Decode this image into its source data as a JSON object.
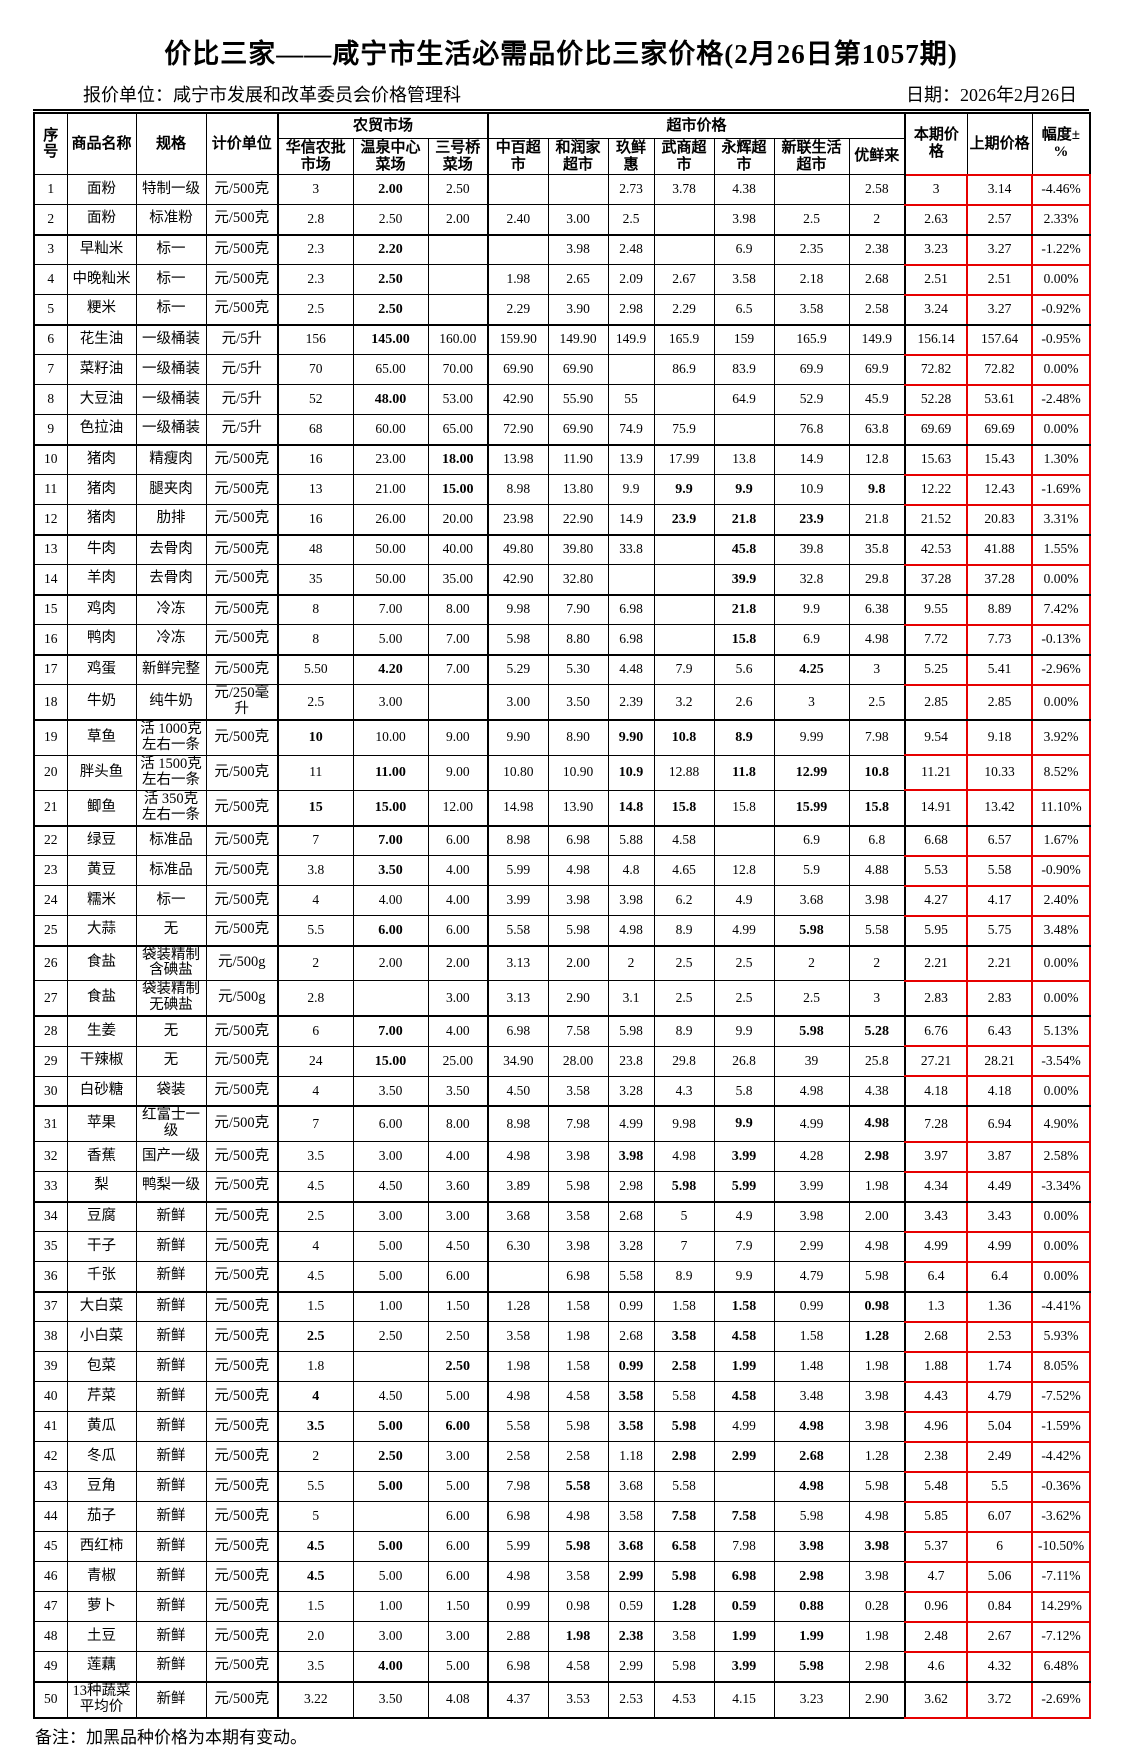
{
  "page": {
    "title": "价比三家——咸宁市生活必需品价比三家价格(2月26日第1057期)",
    "quote_unit_label": "报价单位：",
    "quote_unit": "咸宁市发展和改革委员会价格管理科",
    "date_label": "日期：",
    "date": "2026年2月26日",
    "note": "备注：加黑品种价格为本期有变动。"
  },
  "colors": {
    "grid": "#000000",
    "highlight_border": "#e60000"
  },
  "table": {
    "fixed_headers": {
      "no": "序号",
      "name": "商品名称",
      "spec": "规格",
      "unit": "计价单位"
    },
    "market_group": {
      "label": "农贸市场",
      "cols": [
        "华信农批市场",
        "温泉中心菜场",
        "三号桥菜场"
      ]
    },
    "super_group": {
      "label": "超市价格",
      "cols": [
        "中百超市",
        "和润家超市",
        "玖鲜惠",
        "武商超市",
        "永辉超市",
        "新联生活超市",
        "优鲜来"
      ]
    },
    "tail_headers": {
      "current": "本期价格",
      "previous": "上期价格",
      "change": "幅度±%"
    },
    "bold_marker": "*",
    "group_end_rows": [
      2,
      5,
      9,
      12,
      14,
      16,
      18,
      21,
      25,
      27,
      30,
      33,
      36,
      49
    ],
    "rows": [
      [
        "1",
        "面粉",
        "特制一级",
        "元/500克",
        "3",
        "*2.00",
        "2.50",
        "",
        "",
        "2.73",
        "3.78",
        "4.38",
        "",
        "2.58",
        "3",
        "3.14",
        "-4.46%"
      ],
      [
        "2",
        "面粉",
        "标准粉",
        "元/500克",
        "2.8",
        "2.50",
        "2.00",
        "2.40",
        "3.00",
        "2.5",
        "",
        "3.98",
        "2.5",
        "2",
        "2.63",
        "2.57",
        "2.33%"
      ],
      [
        "3",
        "早籼米",
        "标一",
        "元/500克",
        "2.3",
        "*2.20",
        "",
        "",
        "3.98",
        "2.48",
        "",
        "6.9",
        "2.35",
        "2.38",
        "3.23",
        "3.27",
        "-1.22%"
      ],
      [
        "4",
        "中晚籼米",
        "标一",
        "元/500克",
        "2.3",
        "*2.50",
        "",
        "1.98",
        "2.65",
        "2.09",
        "2.67",
        "3.58",
        "2.18",
        "2.68",
        "2.51",
        "2.51",
        "0.00%"
      ],
      [
        "5",
        "粳米",
        "标一",
        "元/500克",
        "2.5",
        "*2.50",
        "",
        "2.29",
        "3.90",
        "2.98",
        "2.29",
        "6.5",
        "3.58",
        "2.58",
        "3.24",
        "3.27",
        "-0.92%"
      ],
      [
        "6",
        "花生油",
        "一级桶装",
        "元/5升",
        "156",
        "*145.00",
        "160.00",
        "159.90",
        "149.90",
        "149.9",
        "165.9",
        "159",
        "165.9",
        "149.9",
        "156.14",
        "157.64",
        "-0.95%"
      ],
      [
        "7",
        "菜籽油",
        "一级桶装",
        "元/5升",
        "70",
        "65.00",
        "70.00",
        "69.90",
        "69.90",
        "",
        "86.9",
        "83.9",
        "69.9",
        "69.9",
        "72.82",
        "72.82",
        "0.00%"
      ],
      [
        "8",
        "大豆油",
        "一级桶装",
        "元/5升",
        "52",
        "*48.00",
        "53.00",
        "42.90",
        "55.90",
        "55",
        "",
        "64.9",
        "52.9",
        "45.9",
        "52.28",
        "53.61",
        "-2.48%"
      ],
      [
        "9",
        "色拉油",
        "一级桶装",
        "元/5升",
        "68",
        "60.00",
        "65.00",
        "72.90",
        "69.90",
        "74.9",
        "75.9",
        "",
        "76.8",
        "63.8",
        "69.69",
        "69.69",
        "0.00%"
      ],
      [
        "10",
        "猪肉",
        "精瘦肉",
        "元/500克",
        "16",
        "23.00",
        "*18.00",
        "13.98",
        "11.90",
        "13.9",
        "17.99",
        "13.8",
        "14.9",
        "12.8",
        "15.63",
        "15.43",
        "1.30%"
      ],
      [
        "11",
        "猪肉",
        "腿夹肉",
        "元/500克",
        "13",
        "21.00",
        "*15.00",
        "8.98",
        "13.80",
        "9.9",
        "*9.9",
        "*9.9",
        "10.9",
        "*9.8",
        "12.22",
        "12.43",
        "-1.69%"
      ],
      [
        "12",
        "猪肉",
        "肋排",
        "元/500克",
        "16",
        "26.00",
        "20.00",
        "23.98",
        "22.90",
        "14.9",
        "*23.9",
        "*21.8",
        "*23.9",
        "21.8",
        "21.52",
        "20.83",
        "3.31%"
      ],
      [
        "13",
        "牛肉",
        "去骨肉",
        "元/500克",
        "48",
        "50.00",
        "40.00",
        "49.80",
        "39.80",
        "33.8",
        "",
        "*45.8",
        "39.8",
        "35.8",
        "42.53",
        "41.88",
        "1.55%"
      ],
      [
        "14",
        "羊肉",
        "去骨肉",
        "元/500克",
        "35",
        "50.00",
        "35.00",
        "42.90",
        "32.80",
        "",
        "",
        "*39.9",
        "32.8",
        "29.8",
        "37.28",
        "37.28",
        "0.00%"
      ],
      [
        "15",
        "鸡肉",
        "冷冻",
        "元/500克",
        "8",
        "7.00",
        "8.00",
        "9.98",
        "7.90",
        "6.98",
        "",
        "*21.8",
        "9.9",
        "6.38",
        "9.55",
        "8.89",
        "7.42%"
      ],
      [
        "16",
        "鸭肉",
        "冷冻",
        "元/500克",
        "8",
        "5.00",
        "7.00",
        "5.98",
        "8.80",
        "6.98",
        "",
        "*15.8",
        "6.9",
        "4.98",
        "7.72",
        "7.73",
        "-0.13%"
      ],
      [
        "17",
        "鸡蛋",
        "新鲜完整",
        "元/500克",
        "5.50",
        "*4.20",
        "7.00",
        "5.29",
        "5.30",
        "4.48",
        "7.9",
        "5.6",
        "*4.25",
        "3",
        "5.25",
        "5.41",
        "-2.96%"
      ],
      [
        "18",
        "牛奶",
        "纯牛奶",
        "元/250毫升",
        "2.5",
        "3.00",
        "",
        "3.00",
        "3.50",
        "2.39",
        "3.2",
        "2.6",
        "3",
        "2.5",
        "2.85",
        "2.85",
        "0.00%"
      ],
      [
        "19",
        "草鱼",
        "活 1000克左右一条",
        "元/500克",
        "*10",
        "10.00",
        "9.00",
        "9.90",
        "8.90",
        "*9.90",
        "*10.8",
        "*8.9",
        "9.99",
        "7.98",
        "9.54",
        "9.18",
        "3.92%"
      ],
      [
        "20",
        "胖头鱼",
        "活 1500克左右一条",
        "元/500克",
        "11",
        "*11.00",
        "9.00",
        "10.80",
        "10.90",
        "*10.9",
        "12.88",
        "*11.8",
        "*12.99",
        "*10.8",
        "11.21",
        "10.33",
        "8.52%"
      ],
      [
        "21",
        "鲫鱼",
        "活 350克左右一条",
        "元/500克",
        "*15",
        "*15.00",
        "12.00",
        "14.98",
        "13.90",
        "*14.8",
        "*15.8",
        "15.8",
        "*15.99",
        "*15.8",
        "14.91",
        "13.42",
        "11.10%"
      ],
      [
        "22",
        "绿豆",
        "标准品",
        "元/500克",
        "7",
        "*7.00",
        "6.00",
        "8.98",
        "6.98",
        "5.88",
        "4.58",
        "",
        "6.9",
        "6.8",
        "6.68",
        "6.57",
        "1.67%"
      ],
      [
        "23",
        "黄豆",
        "标准品",
        "元/500克",
        "3.8",
        "*3.50",
        "4.00",
        "5.99",
        "4.98",
        "4.8",
        "4.65",
        "12.8",
        "5.9",
        "4.88",
        "5.53",
        "5.58",
        "-0.90%"
      ],
      [
        "24",
        "糯米",
        "标一",
        "元/500克",
        "4",
        "4.00",
        "4.00",
        "3.99",
        "3.98",
        "3.98",
        "6.2",
        "4.9",
        "3.68",
        "3.98",
        "4.27",
        "4.17",
        "2.40%"
      ],
      [
        "25",
        "大蒜",
        "无",
        "元/500克",
        "5.5",
        "*6.00",
        "6.00",
        "5.58",
        "5.98",
        "4.98",
        "8.9",
        "4.99",
        "*5.98",
        "5.58",
        "5.95",
        "5.75",
        "3.48%"
      ],
      [
        "26",
        "食盐",
        "袋装精制含碘盐",
        "元/500g",
        "2",
        "2.00",
        "2.00",
        "3.13",
        "2.00",
        "2",
        "2.5",
        "2.5",
        "2",
        "2",
        "2.21",
        "2.21",
        "0.00%"
      ],
      [
        "27",
        "食盐",
        "袋装精制无碘盐",
        "元/500g",
        "2.8",
        "",
        "3.00",
        "3.13",
        "2.90",
        "3.1",
        "2.5",
        "2.5",
        "2.5",
        "3",
        "2.83",
        "2.83",
        "0.00%"
      ],
      [
        "28",
        "生姜",
        "无",
        "元/500克",
        "6",
        "*7.00",
        "4.00",
        "6.98",
        "7.58",
        "5.98",
        "8.9",
        "9.9",
        "*5.98",
        "*5.28",
        "6.76",
        "6.43",
        "5.13%"
      ],
      [
        "29",
        "干辣椒",
        "无",
        "元/500克",
        "24",
        "*15.00",
        "25.00",
        "34.90",
        "28.00",
        "23.8",
        "29.8",
        "26.8",
        "39",
        "25.8",
        "27.21",
        "28.21",
        "-3.54%"
      ],
      [
        "30",
        "白砂糖",
        "袋装",
        "元/500克",
        "4",
        "3.50",
        "3.50",
        "4.50",
        "3.58",
        "3.28",
        "4.3",
        "5.8",
        "4.98",
        "4.38",
        "4.18",
        "4.18",
        "0.00%"
      ],
      [
        "31",
        "苹果",
        "红富士一级",
        "元/500克",
        "7",
        "6.00",
        "8.00",
        "8.98",
        "7.98",
        "4.99",
        "9.98",
        "*9.9",
        "4.99",
        "*4.98",
        "7.28",
        "6.94",
        "4.90%"
      ],
      [
        "32",
        "香蕉",
        "国产一级",
        "元/500克",
        "3.5",
        "3.00",
        "4.00",
        "4.98",
        "3.98",
        "*3.98",
        "4.98",
        "*3.99",
        "4.28",
        "*2.98",
        "3.97",
        "3.87",
        "2.58%"
      ],
      [
        "33",
        "梨",
        "鸭梨一级",
        "元/500克",
        "4.5",
        "4.50",
        "3.60",
        "3.89",
        "5.98",
        "2.98",
        "*5.98",
        "*5.99",
        "3.99",
        "1.98",
        "4.34",
        "4.49",
        "-3.34%"
      ],
      [
        "34",
        "豆腐",
        "新鲜",
        "元/500克",
        "2.5",
        "3.00",
        "3.00",
        "3.68",
        "3.58",
        "2.68",
        "5",
        "4.9",
        "3.98",
        "2.00",
        "3.43",
        "3.43",
        "0.00%"
      ],
      [
        "35",
        "干子",
        "新鲜",
        "元/500克",
        "4",
        "5.00",
        "4.50",
        "6.30",
        "3.98",
        "3.28",
        "7",
        "7.9",
        "2.99",
        "4.98",
        "4.99",
        "4.99",
        "0.00%"
      ],
      [
        "36",
        "千张",
        "新鲜",
        "元/500克",
        "4.5",
        "5.00",
        "6.00",
        "",
        "6.98",
        "5.58",
        "8.9",
        "9.9",
        "4.79",
        "5.98",
        "6.4",
        "6.4",
        "0.00%"
      ],
      [
        "37",
        "大白菜",
        "新鲜",
        "元/500克",
        "1.5",
        "1.00",
        "1.50",
        "1.28",
        "1.58",
        "0.99",
        "1.58",
        "*1.58",
        "0.99",
        "*0.98",
        "1.3",
        "1.36",
        "-4.41%"
      ],
      [
        "38",
        "小白菜",
        "新鲜",
        "元/500克",
        "*2.5",
        "2.50",
        "2.50",
        "3.58",
        "1.98",
        "2.68",
        "*3.58",
        "*4.58",
        "1.58",
        "*1.28",
        "2.68",
        "2.53",
        "5.93%"
      ],
      [
        "39",
        "包菜",
        "新鲜",
        "元/500克",
        "1.8",
        "",
        "*2.50",
        "1.98",
        "1.58",
        "*0.99",
        "*2.58",
        "*1.99",
        "1.48",
        "1.98",
        "1.88",
        "1.74",
        "8.05%"
      ],
      [
        "40",
        "芹菜",
        "新鲜",
        "元/500克",
        "*4",
        "4.50",
        "5.00",
        "4.98",
        "4.58",
        "*3.58",
        "5.58",
        "*4.58",
        "3.48",
        "3.98",
        "4.43",
        "4.79",
        "-7.52%"
      ],
      [
        "41",
        "黄瓜",
        "新鲜",
        "元/500克",
        "*3.5",
        "*5.00",
        "*6.00",
        "5.58",
        "5.98",
        "*3.58",
        "*5.98",
        "4.99",
        "*4.98",
        "3.98",
        "4.96",
        "5.04",
        "-1.59%"
      ],
      [
        "42",
        "冬瓜",
        "新鲜",
        "元/500克",
        "2",
        "*2.50",
        "3.00",
        "2.58",
        "2.58",
        "1.18",
        "*2.98",
        "*2.99",
        "*2.68",
        "1.28",
        "2.38",
        "2.49",
        "-4.42%"
      ],
      [
        "43",
        "豆角",
        "新鲜",
        "元/500克",
        "5.5",
        "*5.00",
        "5.00",
        "7.98",
        "*5.58",
        "3.68",
        "5.58",
        "",
        "*4.98",
        "5.98",
        "5.48",
        "5.5",
        "-0.36%"
      ],
      [
        "44",
        "茄子",
        "新鲜",
        "元/500克",
        "5",
        "",
        "6.00",
        "6.98",
        "4.98",
        "3.58",
        "*7.58",
        "*7.58",
        "5.98",
        "4.98",
        "5.85",
        "6.07",
        "-3.62%"
      ],
      [
        "45",
        "西红柿",
        "新鲜",
        "元/500克",
        "*4.5",
        "*5.00",
        "6.00",
        "5.99",
        "*5.98",
        "*3.68",
        "*6.58",
        "7.98",
        "*3.98",
        "*3.98",
        "5.37",
        "6",
        "-10.50%"
      ],
      [
        "46",
        "青椒",
        "新鲜",
        "元/500克",
        "*4.5",
        "5.00",
        "6.00",
        "4.98",
        "3.58",
        "*2.99",
        "*5.98",
        "*6.98",
        "*2.98",
        "3.98",
        "4.7",
        "5.06",
        "-7.11%"
      ],
      [
        "47",
        "萝卜",
        "新鲜",
        "元/500克",
        "1.5",
        "1.00",
        "1.50",
        "0.99",
        "0.98",
        "0.59",
        "*1.28",
        "*0.59",
        "*0.88",
        "0.28",
        "0.96",
        "0.84",
        "14.29%"
      ],
      [
        "48",
        "土豆",
        "新鲜",
        "元/500克",
        "2.0",
        "3.00",
        "3.00",
        "2.88",
        "*1.98",
        "*2.38",
        "3.58",
        "*1.99",
        "*1.99",
        "1.98",
        "2.48",
        "2.67",
        "-7.12%"
      ],
      [
        "49",
        "莲藕",
        "新鲜",
        "元/500克",
        "3.5",
        "*4.00",
        "5.00",
        "6.98",
        "4.58",
        "2.99",
        "5.98",
        "*3.99",
        "*5.98",
        "2.98",
        "4.6",
        "4.32",
        "6.48%"
      ],
      [
        "50",
        "13种蔬菜平均价",
        "新鲜",
        "元/500克",
        "3.22",
        "3.50",
        "4.08",
        "4.37",
        "3.53",
        "2.53",
        "4.53",
        "4.15",
        "3.23",
        "2.90",
        "3.62",
        "3.72",
        "-2.69%"
      ]
    ]
  }
}
